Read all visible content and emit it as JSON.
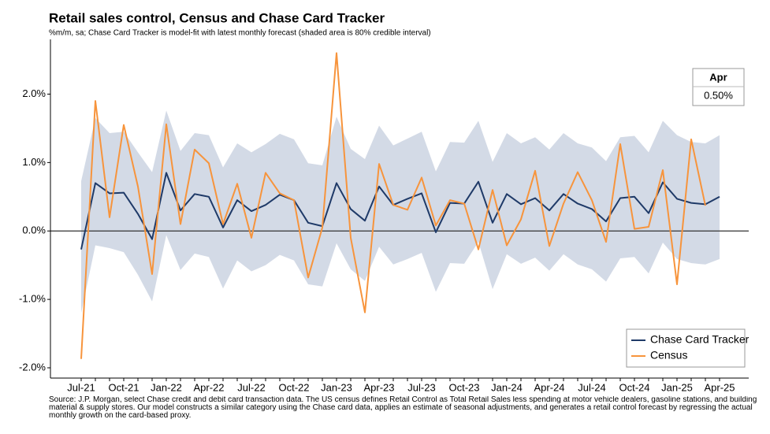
{
  "chart_data": {
    "type": "line",
    "title": "Retail sales control, Census and Chase Card Tracker",
    "subtitle": "%m/m, sa; Chase Card Tracker is model-fit with latest monthly forecast (shaded area is 80% credible interval)",
    "source": "Source: J.P. Morgan, select Chase credit and debit card transaction data. The US census defines Retail Control as Total Retail Sales less spending at motor vehicle dealers, gasoline stations, and building material & supply stores. Our model constructs a similar category using the Chase card data, applies an estimate of seasonal adjustments, and generates a retail control forecast by regressing the actual monthly growth on the card-based proxy.",
    "categories": [
      "Jul-21",
      null,
      null,
      "Oct-21",
      null,
      null,
      "Jan-22",
      null,
      null,
      "Apr-22",
      null,
      null,
      "Jul-22",
      null,
      null,
      "Oct-22",
      null,
      null,
      "Jan-23",
      null,
      null,
      "Apr-23",
      null,
      null,
      "Jul-23",
      null,
      null,
      "Oct-23",
      null,
      null,
      "Jan-24",
      null,
      null,
      "Apr-24",
      null,
      null,
      "Jul-24",
      null,
      null,
      "Oct-24",
      null,
      null,
      "Jan-25",
      null,
      null,
      "Apr-25"
    ],
    "series": [
      {
        "name": "Chase Card Tracker",
        "color": "#1f3a68",
        "values": [
          -0.27,
          0.7,
          0.55,
          0.56,
          0.25,
          -0.12,
          0.85,
          0.3,
          0.54,
          0.5,
          0.05,
          0.45,
          0.29,
          0.38,
          0.53,
          0.45,
          0.12,
          0.07,
          0.7,
          0.32,
          0.15,
          0.65,
          0.38,
          0.47,
          0.55,
          -0.02,
          0.41,
          0.4,
          0.72,
          0.12,
          0.54,
          0.39,
          0.48,
          0.3,
          0.54,
          0.4,
          0.32,
          0.14,
          0.48,
          0.5,
          0.26,
          0.71,
          0.47,
          0.41,
          0.39,
          0.5
        ]
      },
      {
        "name": "Census",
        "color": "#f7943c",
        "values": [
          -1.87,
          1.9,
          0.2,
          1.55,
          0.65,
          -0.63,
          1.56,
          0.1,
          1.19,
          0.99,
          0.1,
          0.69,
          -0.1,
          0.85,
          0.55,
          0.45,
          -0.68,
          0.05,
          2.6,
          -0.1,
          -1.19,
          0.98,
          0.38,
          0.31,
          0.78,
          0.08,
          0.45,
          0.4,
          -0.27,
          0.6,
          -0.21,
          0.17,
          0.88,
          -0.22,
          0.4,
          0.86,
          0.45,
          -0.16,
          1.27,
          0.03,
          0.06,
          0.89,
          -0.78,
          1.34,
          0.37,
          null
        ]
      }
    ],
    "interval": {
      "color": "#d3dae6",
      "upper": [
        0.73,
        1.65,
        1.43,
        1.45,
        1.15,
        0.86,
        1.76,
        1.17,
        1.43,
        1.4,
        0.93,
        1.28,
        1.15,
        1.27,
        1.42,
        1.34,
        0.99,
        0.96,
        1.67,
        1.2,
        1.05,
        1.54,
        1.25,
        1.35,
        1.45,
        0.87,
        1.3,
        1.29,
        1.61,
        1.01,
        1.43,
        1.28,
        1.37,
        1.19,
        1.43,
        1.28,
        1.22,
        1.02,
        1.37,
        1.39,
        1.15,
        1.61,
        1.4,
        1.3,
        1.28,
        1.4
      ],
      "lower": [
        -1.2,
        -0.21,
        -0.25,
        -0.31,
        -0.64,
        -1.03,
        -0.06,
        -0.57,
        -0.33,
        -0.38,
        -0.84,
        -0.43,
        -0.59,
        -0.5,
        -0.35,
        -0.43,
        -0.78,
        -0.81,
        -0.18,
        -0.56,
        -0.73,
        -0.23,
        -0.49,
        -0.41,
        -0.32,
        -0.89,
        -0.47,
        -0.48,
        -0.16,
        -0.85,
        -0.34,
        -0.48,
        -0.39,
        -0.58,
        -0.34,
        -0.49,
        -0.56,
        -0.74,
        -0.4,
        -0.38,
        -0.62,
        -0.17,
        -0.41,
        -0.47,
        -0.49,
        -0.41
      ]
    },
    "annotation": {
      "title": "Apr",
      "label": "0.50%"
    },
    "ylim": [
      -2.15,
      2.8
    ],
    "yticks": [
      {
        "value": -2,
        "label": "-2.0%"
      },
      {
        "value": -1,
        "label": "-1.0%"
      },
      {
        "value": 0,
        "label": "0.0%"
      },
      {
        "value": 1,
        "label": "1.0%"
      },
      {
        "value": 2,
        "label": "2.0%"
      }
    ],
    "legend": "lower right"
  }
}
